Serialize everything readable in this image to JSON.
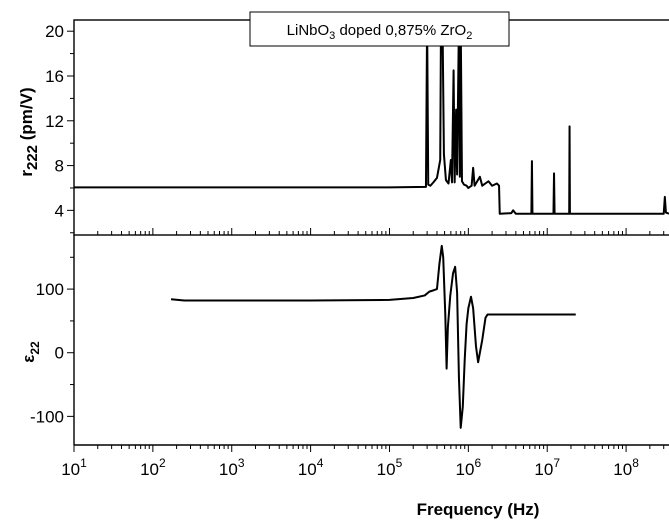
{
  "chart_data": [
    {
      "type": "line",
      "panel": "top",
      "title": "LiNbO3 doped 0,875% ZrO2",
      "title_parts": {
        "a": "LiNbO",
        "b": "3",
        "c": " doped 0,875% ZrO",
        "d": "2"
      },
      "ylabel": "r222 (pm/V)",
      "ylabel_parts": {
        "main": "r",
        "sub": "222",
        "unit": " (pm/V)"
      },
      "xscale": "log",
      "xlim": [
        10,
        350000000
      ],
      "ylim": [
        1.8,
        21
      ],
      "yticks": [
        4,
        8,
        12,
        16,
        20
      ],
      "yticklabels": [
        "4",
        "8",
        "12",
        "16",
        "20"
      ],
      "series": [
        {
          "points": [
            [
              10,
              6.05
            ],
            [
              1000,
              6.05
            ],
            [
              100000,
              6.05
            ],
            [
              290000,
              6.1
            ],
            [
              300000,
              21
            ],
            [
              310000,
              6.3
            ],
            [
              330000,
              6.2
            ],
            [
              360000,
              6.5
            ],
            [
              400000,
              6.9
            ],
            [
              440000,
              8.5
            ],
            [
              450000,
              21
            ],
            [
              470000,
              21
            ],
            [
              490000,
              9
            ],
            [
              520000,
              6.7
            ],
            [
              560000,
              6.4
            ],
            [
              600000,
              8.5
            ],
            [
              620000,
              6.5
            ],
            [
              650000,
              16.5
            ],
            [
              670000,
              6.5
            ],
            [
              700000,
              13
            ],
            [
              720000,
              7.2
            ],
            [
              760000,
              21
            ],
            [
              780000,
              7
            ],
            [
              800000,
              21
            ],
            [
              830000,
              6.6
            ],
            [
              880000,
              6.3
            ],
            [
              950000,
              6.2
            ],
            [
              1000000,
              6
            ],
            [
              1100000,
              6.2
            ],
            [
              1150000,
              7.8
            ],
            [
              1200000,
              6.2
            ],
            [
              1400000,
              7
            ],
            [
              1500000,
              6.2
            ],
            [
              1800000,
              6.6
            ],
            [
              2000000,
              6.2
            ],
            [
              2300000,
              6.4
            ],
            [
              2450000,
              6.2
            ],
            [
              2500000,
              3.7
            ],
            [
              3500000,
              3.75
            ],
            [
              3700000,
              4
            ],
            [
              4000000,
              3.7
            ],
            [
              6300000,
              3.7
            ],
            [
              6400000,
              8.4
            ],
            [
              6500000,
              3.7
            ],
            [
              12000000,
              3.7
            ],
            [
              12200000,
              7.3
            ],
            [
              12400000,
              3.7
            ],
            [
              19000000,
              3.7
            ],
            [
              19200000,
              11.5
            ],
            [
              19400000,
              3.7
            ],
            [
              100000000,
              3.7
            ],
            [
              300000000,
              3.7
            ],
            [
              310000000,
              5.2
            ],
            [
              320000000,
              3.8
            ],
            [
              350000000,
              3.7
            ]
          ]
        }
      ]
    },
    {
      "type": "line",
      "panel": "bottom",
      "xlabel": "Frequency (Hz)",
      "ylabel": "ε22",
      "ylabel_parts": {
        "main": "ε",
        "sub": "22"
      },
      "xscale": "log",
      "xlim": [
        10,
        350000000
      ],
      "ylim": [
        -145,
        185
      ],
      "yticks": [
        -100,
        0,
        100
      ],
      "yticklabels": [
        "-100",
        "0",
        "100"
      ],
      "xticks": [
        10,
        100,
        1000,
        10000,
        100000,
        1000000,
        10000000,
        100000000
      ],
      "xticklabels": [
        {
          "base": "10",
          "exp": "1"
        },
        {
          "base": "10",
          "exp": "2"
        },
        {
          "base": "10",
          "exp": "3"
        },
        {
          "base": "10",
          "exp": "4"
        },
        {
          "base": "10",
          "exp": "5"
        },
        {
          "base": "10",
          "exp": "6"
        },
        {
          "base": "10",
          "exp": "7"
        },
        {
          "base": "10",
          "exp": "8"
        }
      ],
      "series": [
        {
          "points": [
            [
              170,
              84
            ],
            [
              250,
              82
            ],
            [
              1000,
              82
            ],
            [
              10000,
              82
            ],
            [
              100000,
              83
            ],
            [
              200000,
              86
            ],
            [
              280000,
              90
            ],
            [
              320000,
              96
            ],
            [
              360000,
              98
            ],
            [
              400000,
              100
            ],
            [
              430000,
              140
            ],
            [
              460000,
              168
            ],
            [
              480000,
              150
            ],
            [
              510000,
              60
            ],
            [
              530000,
              -25
            ],
            [
              550000,
              40
            ],
            [
              590000,
              90
            ],
            [
              640000,
              125
            ],
            [
              680000,
              135
            ],
            [
              720000,
              95
            ],
            [
              760000,
              -40
            ],
            [
              800000,
              -118
            ],
            [
              850000,
              -85
            ],
            [
              900000,
              -10
            ],
            [
              950000,
              45
            ],
            [
              1000000,
              70
            ],
            [
              1080000,
              88
            ],
            [
              1150000,
              70
            ],
            [
              1250000,
              10
            ],
            [
              1330000,
              -15
            ],
            [
              1500000,
              20
            ],
            [
              1650000,
              55
            ],
            [
              1750000,
              60
            ],
            [
              3000000,
              60
            ],
            [
              10000000,
              60
            ],
            [
              23000000,
              60
            ]
          ]
        }
      ]
    }
  ]
}
